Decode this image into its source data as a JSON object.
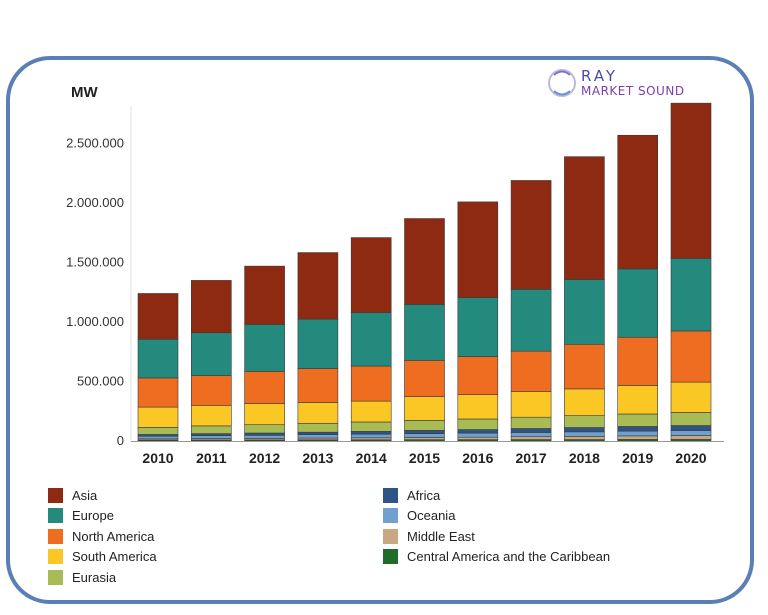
{
  "chart_data": {
    "type": "bar",
    "stacked": true,
    "ylabel": "MW",
    "ylim": [
      0,
      2900000
    ],
    "yticks": [
      0,
      500000,
      1000000,
      1500000,
      2000000,
      2500000
    ],
    "ytick_labels": [
      "0",
      "500.000",
      "1.000.000",
      "1.500.000",
      "2.000.000",
      "2.500.000"
    ],
    "grid": false,
    "legend_position": "bottom",
    "categories": [
      "2010",
      "2011",
      "2012",
      "2013",
      "2014",
      "2015",
      "2016",
      "2017",
      "2018",
      "2019",
      "2020"
    ],
    "series": [
      {
        "name": "Central America and the Caribbean",
        "color": "#1f6b2a",
        "values": [
          8000,
          9000,
          9000,
          10000,
          10000,
          11000,
          11000,
          12000,
          12000,
          13000,
          13000
        ]
      },
      {
        "name": "Middle East",
        "color": "#c8a882",
        "values": [
          10000,
          12000,
          13000,
          15000,
          17000,
          19000,
          21000,
          24000,
          27000,
          30000,
          33000
        ]
      },
      {
        "name": "Oceania",
        "color": "#6fa0cf",
        "values": [
          22000,
          24000,
          26000,
          28000,
          30000,
          32000,
          34000,
          36000,
          38000,
          40000,
          42000
        ]
      },
      {
        "name": "Africa",
        "color": "#2e5486",
        "values": [
          15000,
          17000,
          19000,
          21000,
          24000,
          27000,
          30000,
          33000,
          36000,
          39000,
          42000
        ]
      },
      {
        "name": "Eurasia",
        "color": "#a8bb55",
        "values": [
          60000,
          65000,
          70000,
          75000,
          79000,
          84000,
          89000,
          95000,
          100000,
          105000,
          110000
        ]
      },
      {
        "name": "South America",
        "color": "#fbc725",
        "values": [
          170000,
          173000,
          178000,
          175000,
          175000,
          200000,
          205000,
          215000,
          225000,
          240000,
          255000
        ]
      },
      {
        "name": "North America",
        "color": "#ee6d20",
        "values": [
          245000,
          250000,
          270000,
          285000,
          295000,
          305000,
          320000,
          340000,
          375000,
          405000,
          430000
        ]
      },
      {
        "name": "Europe",
        "color": "#238a7d",
        "values": [
          325000,
          360000,
          395000,
          415000,
          450000,
          470000,
          495000,
          520000,
          545000,
          575000,
          610000
        ]
      },
      {
        "name": "Asia",
        "color": "#8f2a12",
        "values": [
          385000,
          440000,
          490000,
          560000,
          630000,
          722000,
          805000,
          915000,
          1032000,
          1123000,
          1305000
        ]
      }
    ]
  },
  "legend": {
    "left": [
      "Asia",
      "Europe",
      "North America",
      "South America",
      "Eurasia"
    ],
    "right": [
      "Africa",
      "Oceania",
      "Middle East",
      "Central America and the Caribbean"
    ]
  },
  "logo": {
    "line1": "RAY",
    "line2": "MARKET SOUND"
  }
}
